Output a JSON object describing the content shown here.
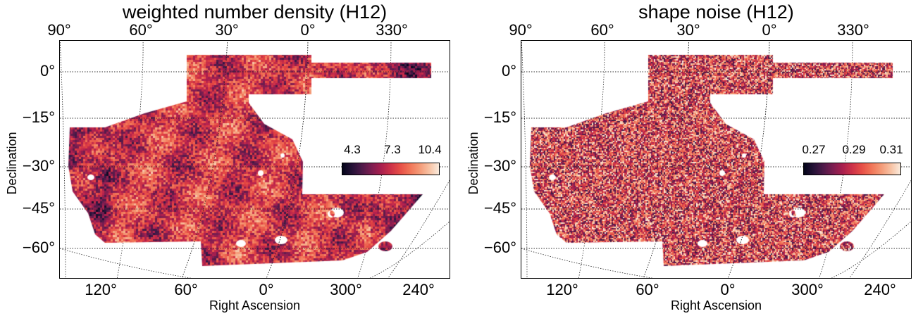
{
  "panels": [
    {
      "id": "left",
      "title": "weighted number density (H12)",
      "ra_top_ticks": [
        "90°",
        "60°",
        "30°",
        "0°",
        "330°"
      ],
      "ra_bottom_ticks": [
        "120°",
        "60°",
        "0°",
        "300°",
        "240°"
      ],
      "dec_ticks": [
        "0°",
        "−15°",
        "−30°",
        "−45°",
        "−60°"
      ],
      "xlabel": "Right Ascension",
      "ylabel": "Declination",
      "colorbar": {
        "ticks": [
          "4.3",
          "7.3",
          "10.4"
        ],
        "colormap": "rocket"
      },
      "texture": "smooth"
    },
    {
      "id": "right",
      "title": "shape noise (H12)",
      "ra_top_ticks": [
        "90°",
        "60°",
        "30°",
        "0°",
        "330°"
      ],
      "ra_bottom_ticks": [
        "120°",
        "60°",
        "0°",
        "300°",
        "240°"
      ],
      "dec_ticks": [
        "0°",
        "−15°",
        "−30°",
        "−45°",
        "−60°"
      ],
      "xlabel": "Right Ascension",
      "ylabel": "Declination",
      "colorbar": {
        "ticks": [
          "0.27",
          "0.29",
          "0.31"
        ],
        "colormap": "rocket"
      },
      "texture": "noisy"
    }
  ],
  "colors": {
    "base_map": "#b8405a",
    "light": "#f6b48f",
    "dark": "#2a1a3d"
  }
}
